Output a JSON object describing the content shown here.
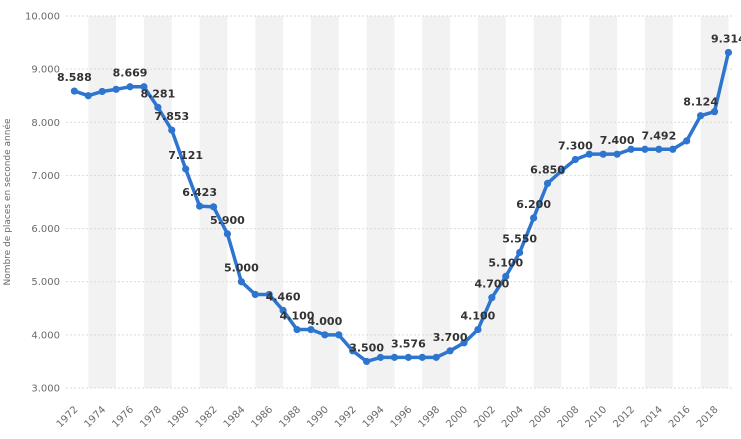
{
  "chart_data": {
    "type": "line",
    "title": "",
    "xlabel": "",
    "ylabel": "Nombre de places en seconde année",
    "ylim": [
      3000,
      10000
    ],
    "y_ticks": [
      {
        "value": 3000,
        "label": "3.000"
      },
      {
        "value": 4000,
        "label": "4.000"
      },
      {
        "value": 5000,
        "label": "5.000"
      },
      {
        "value": 6000,
        "label": "6.000"
      },
      {
        "value": 7000,
        "label": "7.000"
      },
      {
        "value": 8000,
        "label": "8.000"
      },
      {
        "value": 9000,
        "label": "9.000"
      },
      {
        "value": 10000,
        "label": "10.000"
      }
    ],
    "x_ticks": [
      "1972",
      "1974",
      "1976",
      "1978",
      "1980",
      "1982",
      "1984",
      "1986",
      "1988",
      "1990",
      "1992",
      "1994",
      "1996",
      "1998",
      "2000",
      "2002",
      "2004",
      "2006",
      "2008",
      "2010",
      "2012",
      "2014",
      "2016",
      "2018"
    ],
    "grid": true,
    "legend": "none",
    "colors": {
      "line": "#2e75cf",
      "grid": "#d9d9d9",
      "band": "#f2f2f2",
      "tick": "#6b6b6b",
      "label": "#333333"
    },
    "series": [
      {
        "x": [
          1972,
          1973,
          1974,
          1975,
          1976,
          1977,
          1978,
          1979,
          1980,
          1981,
          1982,
          1983,
          1984,
          1985,
          1986,
          1987,
          1988,
          1989,
          1990,
          1991,
          1992,
          1993,
          1994,
          1995,
          1996,
          1997,
          1998,
          1999,
          2000,
          2001,
          2002,
          2003,
          2004,
          2005,
          2006,
          2007,
          2008,
          2009,
          2010,
          2011,
          2012,
          2013,
          2014,
          2015,
          2016,
          2017,
          2018,
          2019
        ],
        "values": [
          8588,
          8500,
          8580,
          8620,
          8669,
          8669,
          8281,
          7853,
          7121,
          6423,
          6409,
          5900,
          5000,
          4760,
          4760,
          4460,
          4100,
          4100,
          4000,
          4000,
          3700,
          3500,
          3576,
          3576,
          3576,
          3576,
          3576,
          3700,
          3850,
          4100,
          4700,
          5100,
          5550,
          6200,
          6850,
          7087,
          7300,
          7400,
          7400,
          7400,
          7492,
          7492,
          7492,
          7492,
          7650,
          8124,
          8200,
          9314
        ]
      }
    ],
    "data_labels": [
      {
        "x": 1972,
        "value": 8588,
        "text": "8.588"
      },
      {
        "x": 1976,
        "value": 8669,
        "text": "8.669"
      },
      {
        "x": 1978,
        "value": 8281,
        "text": "8.281"
      },
      {
        "x": 1979,
        "value": 7853,
        "text": "7.853"
      },
      {
        "x": 1980,
        "value": 7121,
        "text": "7.121"
      },
      {
        "x": 1981,
        "value": 6423,
        "text": "6.423"
      },
      {
        "x": 1983,
        "value": 5900,
        "text": "5.900"
      },
      {
        "x": 1984,
        "value": 5000,
        "text": "5.000"
      },
      {
        "x": 1987,
        "value": 4460,
        "text": "4.460"
      },
      {
        "x": 1988,
        "value": 4100,
        "text": "4.100"
      },
      {
        "x": 1990,
        "value": 4000,
        "text": "4.000"
      },
      {
        "x": 1993,
        "value": 3500,
        "text": "3.500"
      },
      {
        "x": 1996,
        "value": 3576,
        "text": "3.576"
      },
      {
        "x": 1999,
        "value": 3700,
        "text": "3.700"
      },
      {
        "x": 2001,
        "value": 4100,
        "text": "4.100"
      },
      {
        "x": 2002,
        "value": 4700,
        "text": "4.700"
      },
      {
        "x": 2003,
        "value": 5100,
        "text": "5.100"
      },
      {
        "x": 2004,
        "value": 5550,
        "text": "5.550"
      },
      {
        "x": 2005,
        "value": 6200,
        "text": "6.200"
      },
      {
        "x": 2006,
        "value": 6850,
        "text": "6.850"
      },
      {
        "x": 2008,
        "value": 7300,
        "text": "7.300"
      },
      {
        "x": 2011,
        "value": 7400,
        "text": "7.400"
      },
      {
        "x": 2014,
        "value": 7492,
        "text": "7.492"
      },
      {
        "x": 2017,
        "value": 8124,
        "text": "8.124"
      },
      {
        "x": 2019,
        "value": 9314,
        "text": "9.314"
      }
    ]
  }
}
